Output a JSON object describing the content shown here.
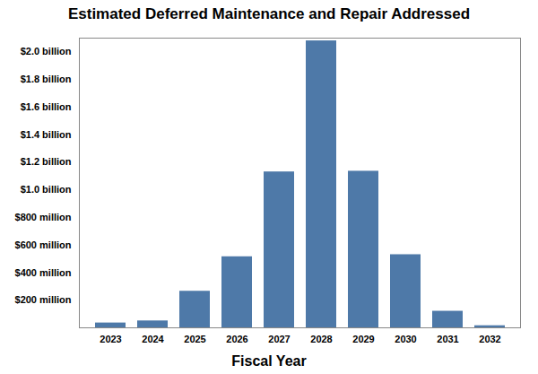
{
  "chart_data": {
    "type": "bar",
    "title": "Estimated Deferred Maintenance and Repair Addressed",
    "x_label": "Fiscal Year",
    "categories": [
      "2023",
      "2024",
      "2025",
      "2026",
      "2027",
      "2028",
      "2029",
      "2030",
      "2031",
      "2032"
    ],
    "values": [
      35,
      50,
      265,
      515,
      1130,
      2080,
      1135,
      530,
      120,
      15
    ],
    "color": "#4e79a8",
    "ylim": [
      0,
      2100
    ],
    "yticks": [
      {
        "value": 200,
        "label": "$200 million"
      },
      {
        "value": 400,
        "label": "$400 million"
      },
      {
        "value": 600,
        "label": "$600 million"
      },
      {
        "value": 800,
        "label": "$800 million"
      },
      {
        "value": 1000,
        "label": "$1.0 billion"
      },
      {
        "value": 1200,
        "label": "$1.2 billion"
      },
      {
        "value": 1400,
        "label": "$1.4 billion"
      },
      {
        "value": 1600,
        "label": "$1.6 billion"
      },
      {
        "value": 1800,
        "label": "$1.8 billion"
      },
      {
        "value": 2000,
        "label": "$2.0 billion"
      }
    ],
    "grid": false
  }
}
